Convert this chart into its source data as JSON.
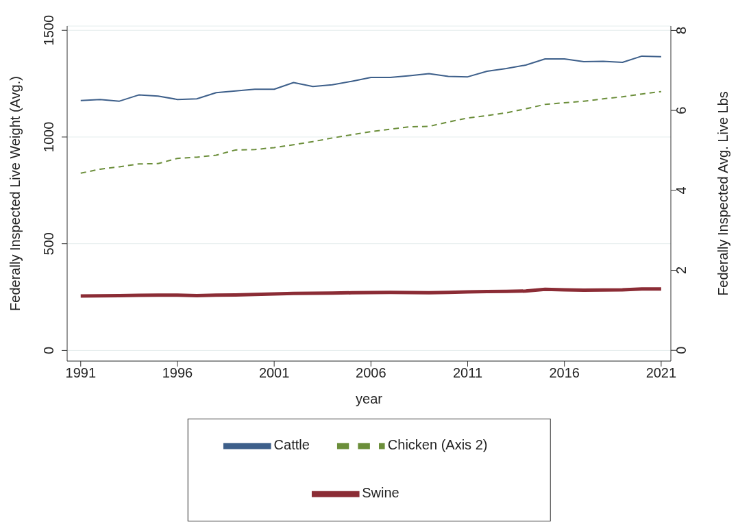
{
  "chart_data": {
    "type": "line",
    "xlabel": "year",
    "ylabel": "Federally Inspected Live Weight (Avg.)",
    "y2label": "Federally Inspected Avg. Live Lbs",
    "x": [
      1991,
      1992,
      1993,
      1994,
      1995,
      1996,
      1997,
      1998,
      1999,
      2000,
      2001,
      2002,
      2003,
      2004,
      2005,
      2006,
      2007,
      2008,
      2009,
      2010,
      2011,
      2012,
      2013,
      2014,
      2015,
      2016,
      2017,
      2018,
      2019,
      2020,
      2021
    ],
    "series": [
      {
        "name": "Cattle",
        "color": "#3d5f8a",
        "line_style": "solid",
        "values": [
          1171,
          1176,
          1168,
          1197,
          1192,
          1176,
          1179,
          1208,
          1216,
          1224,
          1224,
          1255,
          1237,
          1245,
          1261,
          1279,
          1279,
          1287,
          1297,
          1284,
          1282,
          1308,
          1321,
          1337,
          1366,
          1366,
          1353,
          1355,
          1350,
          1379,
          1376
        ]
      },
      {
        "name": "Swine",
        "color": "#8b2c35",
        "line_style": "solid",
        "values": [
          255,
          256,
          257,
          258,
          259,
          259,
          257,
          259,
          260,
          262,
          265,
          267,
          268,
          269,
          270,
          271,
          272,
          271,
          270,
          272,
          274,
          276,
          277,
          278,
          286,
          284,
          282,
          283,
          284,
          288,
          288
        ]
      },
      {
        "name": "Chicken (Axis 2)",
        "color": "#6b8e3a",
        "line_style": "dashed",
        "axis": "y2",
        "values": [
          4.43,
          4.53,
          4.59,
          4.66,
          4.67,
          4.8,
          4.83,
          4.88,
          5.01,
          5.02,
          5.07,
          5.14,
          5.22,
          5.31,
          5.39,
          5.47,
          5.53,
          5.59,
          5.6,
          5.71,
          5.81,
          5.87,
          5.94,
          6.04,
          6.15,
          6.19,
          6.23,
          6.29,
          6.34,
          6.41,
          6.47
        ]
      }
    ],
    "xlim": [
      1990.3,
      2021.5
    ],
    "xticks": [
      1991,
      1996,
      2001,
      2006,
      2011,
      2016,
      2021
    ],
    "ylim": [
      -50,
      1520
    ],
    "yticks": [
      0,
      500,
      1000,
      1500
    ],
    "y2lim": [
      -0.27,
      8.11
    ],
    "y2ticks": [
      0,
      2,
      4,
      6,
      8
    ],
    "grid": "y",
    "legend": "bottom",
    "marker": "none"
  }
}
